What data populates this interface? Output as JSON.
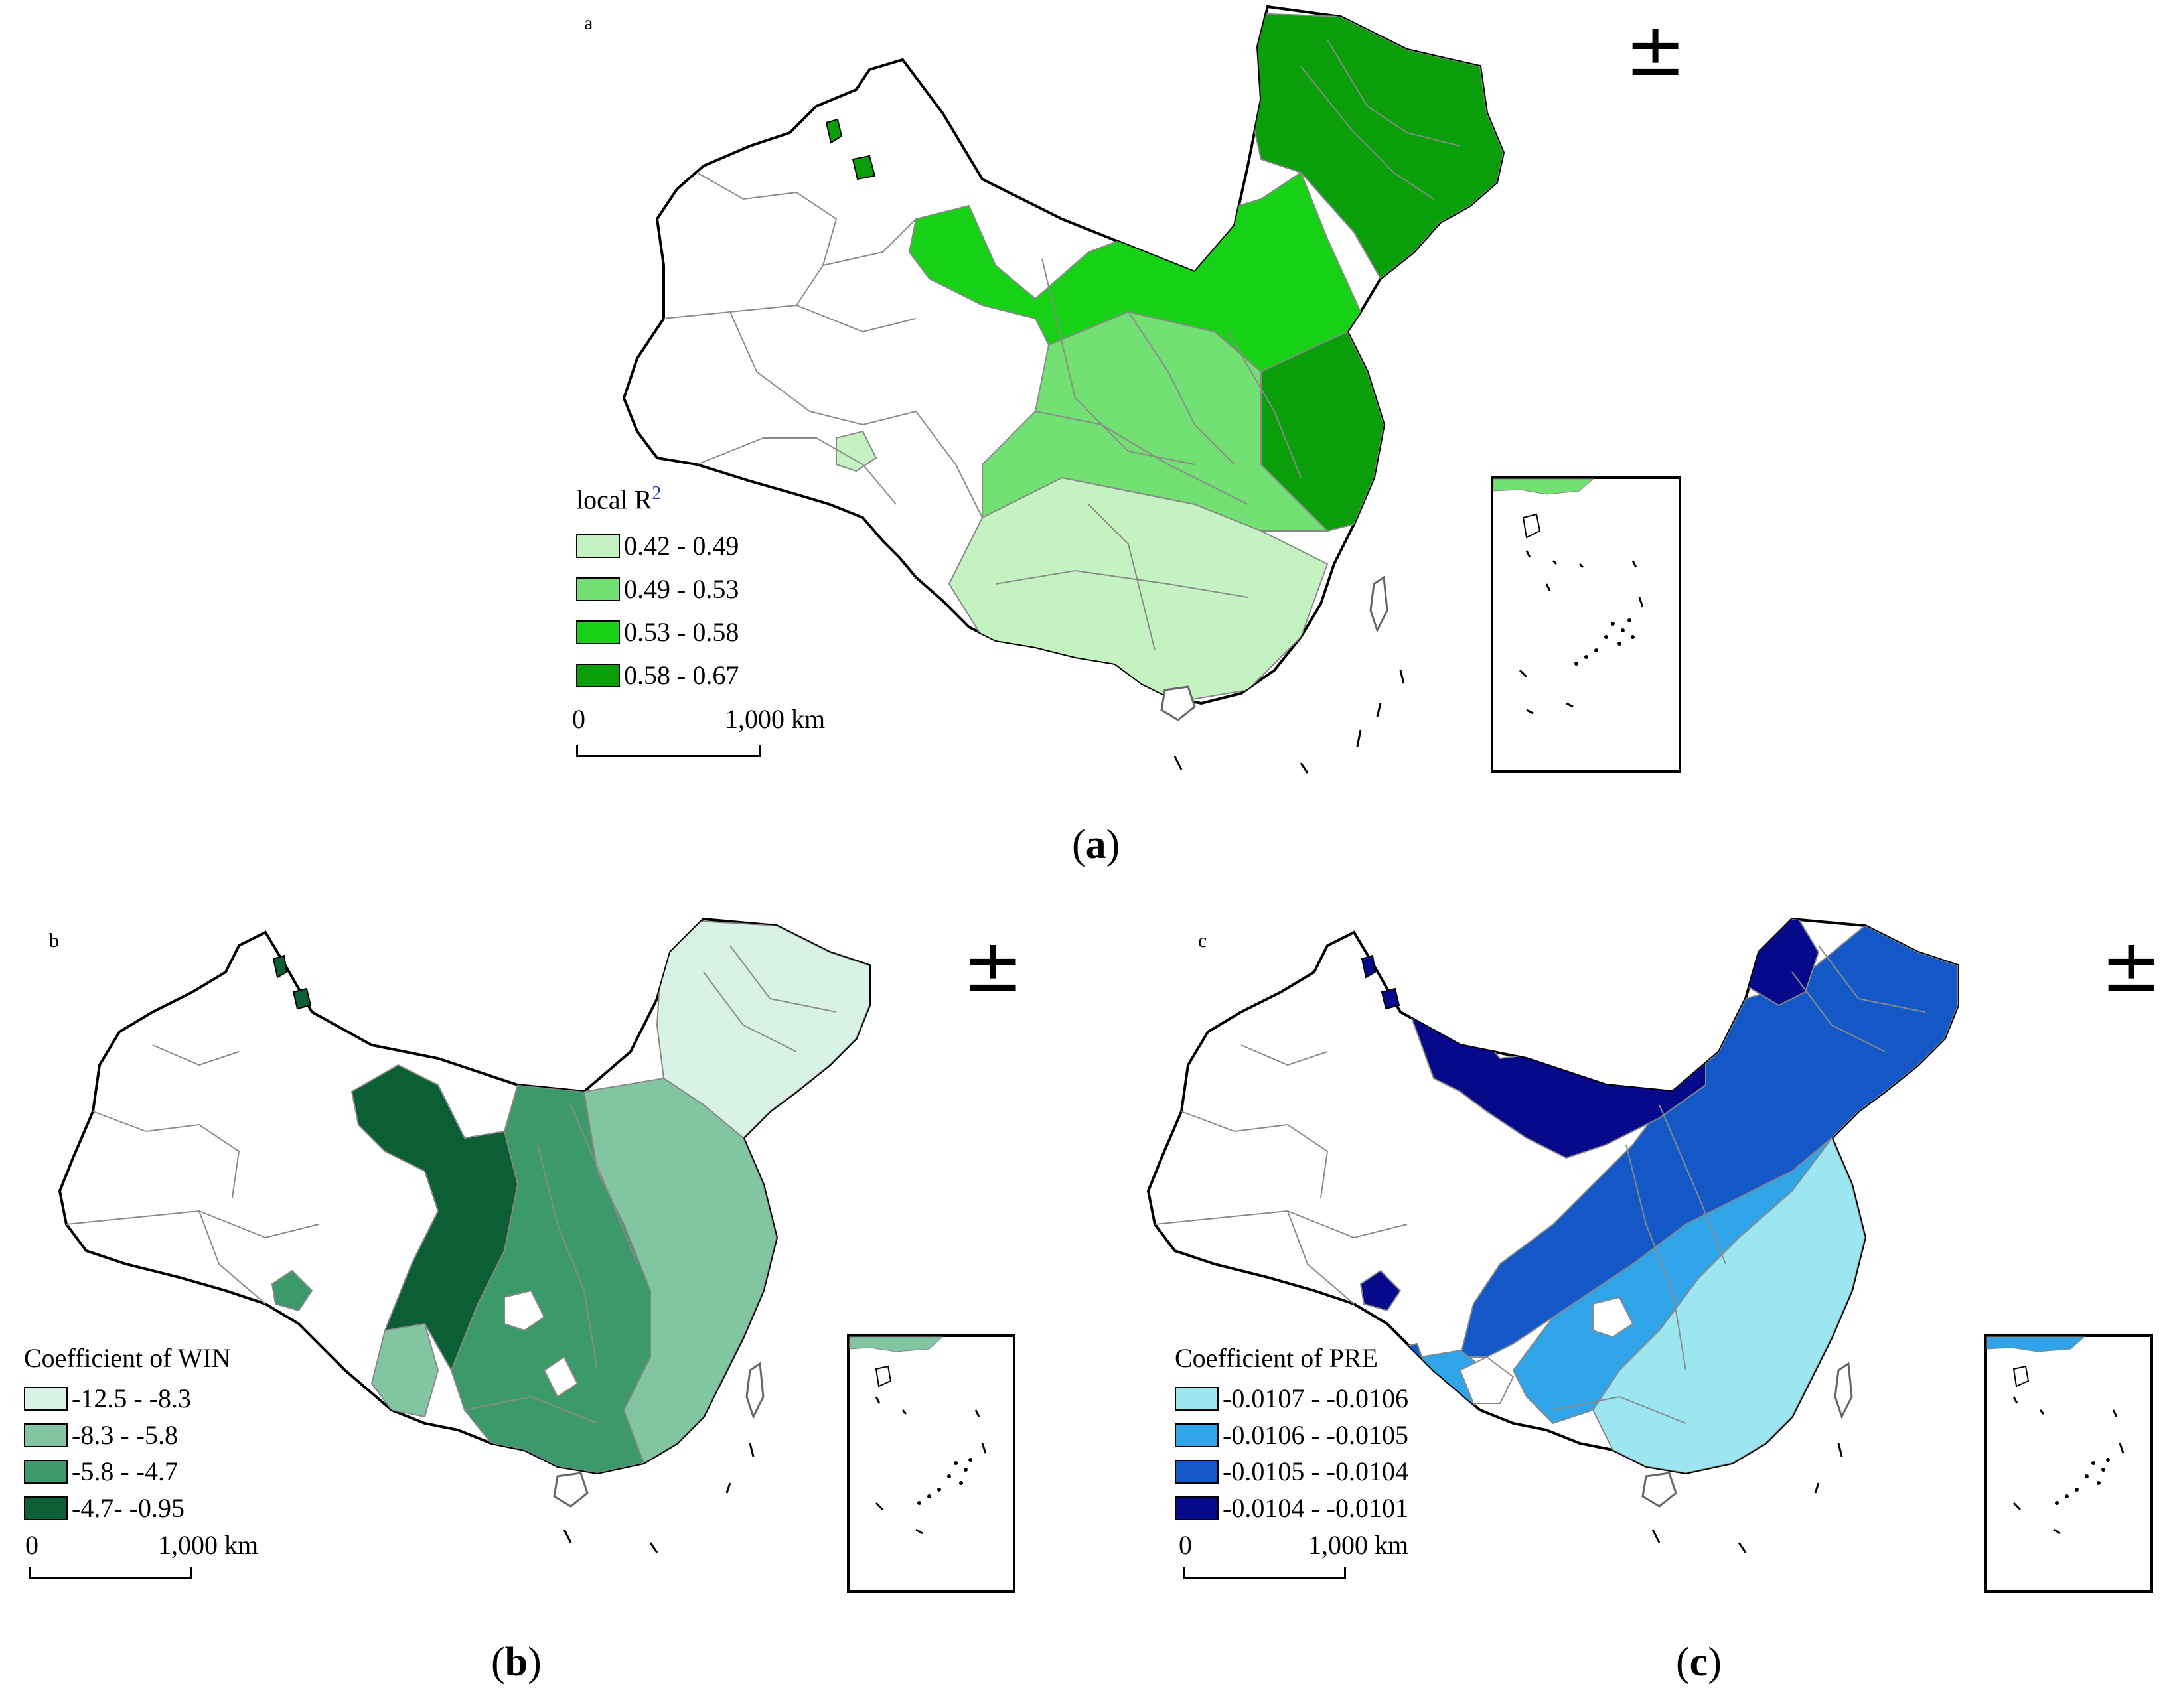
{
  "panel_a": {
    "map_label": "a",
    "north_arrow_symbol": "±",
    "legend_title_main": "local R",
    "legend_title_sup": "2",
    "legend": [
      {
        "label": "0.42 - 0.49",
        "color": "#c4f2c1"
      },
      {
        "label": "0.49 - 0.53",
        "color": "#72e072"
      },
      {
        "label": "0.53 - 0.58",
        "color": "#16d116"
      },
      {
        "label": "0.58 - 0.67",
        "color": "#0a9e0a"
      }
    ],
    "scale_start": "0",
    "scale_end": "1,000 km",
    "caption_open": "(",
    "caption_letter": "a",
    "caption_close": ")"
  },
  "panel_b": {
    "map_label": "b",
    "north_arrow_symbol": "±",
    "legend_title": "Coefficient of WIN",
    "legend": [
      {
        "label": "-12.5 - -8.3",
        "color": "#d8f2e6"
      },
      {
        "label": "-8.3 - -5.8",
        "color": "#82c6a1"
      },
      {
        "label": "-5.8 - -4.7",
        "color": "#3c9a6a"
      },
      {
        "label": "-4.7- -0.95",
        "color": "#0c5e34"
      }
    ],
    "scale_start": "0",
    "scale_end": "1,000 km",
    "caption_open": "(",
    "caption_letter": "b",
    "caption_close": ")"
  },
  "panel_c": {
    "map_label": "c",
    "north_arrow_symbol": "±",
    "legend_title": "Coefficient of PRE",
    "legend": [
      {
        "label": "-0.0107 - -0.0106",
        "color": "#9ce6f2"
      },
      {
        "label": "-0.0106 - -0.0105",
        "color": "#2fa4e8"
      },
      {
        "label": "-0.0105 - -0.0104",
        "color": "#1458c8"
      },
      {
        "label": "-0.0104 - -0.0101",
        "color": "#060a8a"
      }
    ],
    "scale_start": "0",
    "scale_end": "1,000 km",
    "caption_open": "(",
    "caption_letter": "c",
    "caption_close": ")"
  }
}
